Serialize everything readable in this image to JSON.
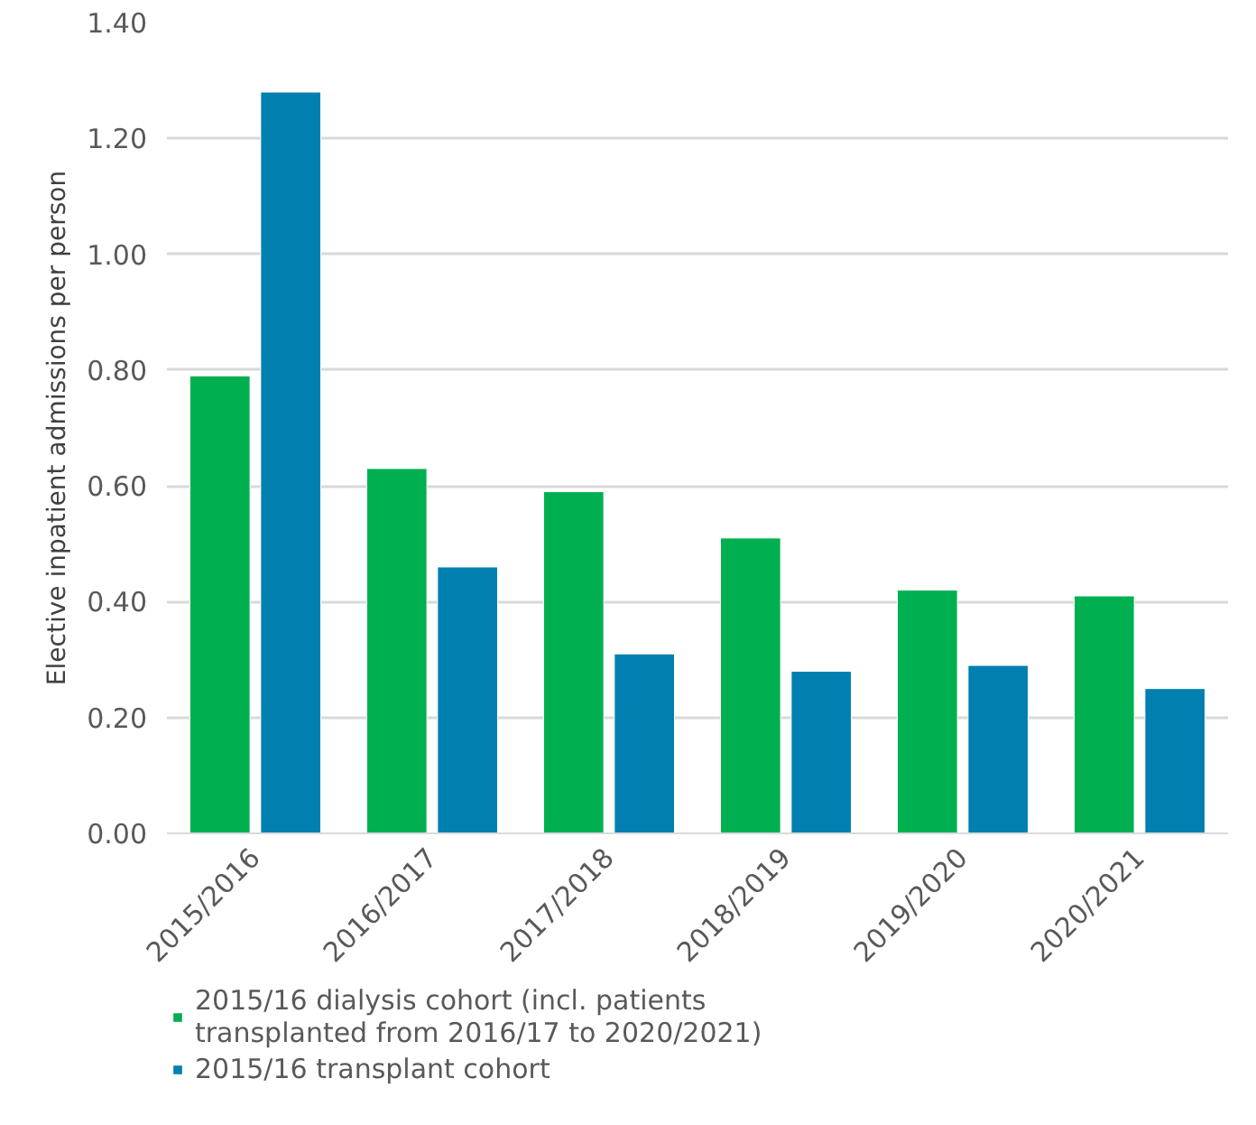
{
  "chart_data": {
    "type": "bar",
    "ylabel": "Elective inpatient admissions per person",
    "categories": [
      "2015/2016",
      "2016/2017",
      "2017/2018",
      "2018/2019",
      "2019/2020",
      "2020/2021"
    ],
    "series": [
      {
        "name": "2015/16 dialysis cohort (incl. patients transplanted from 2016/17 to 2020/2021)",
        "color": "#00b050",
        "values": [
          0.79,
          0.63,
          0.59,
          0.51,
          0.42,
          0.41
        ]
      },
      {
        "name": "2015/16 transplant cohort",
        "color": "#0080b0",
        "values": [
          1.28,
          0.46,
          0.31,
          0.28,
          0.29,
          0.25
        ]
      }
    ],
    "ylim": [
      0,
      1.4
    ],
    "yticks": [
      {
        "value": 0,
        "label": "0.00"
      },
      {
        "value": 0.2,
        "label": "0.20"
      },
      {
        "value": 0.4,
        "label": "0.40"
      },
      {
        "value": 0.6,
        "label": "0.60"
      },
      {
        "value": 0.8,
        "label": "0.80"
      },
      {
        "value": 1.0,
        "label": "1.00"
      },
      {
        "value": 1.2,
        "label": "1.20"
      },
      {
        "value": 1.4,
        "label": "1.40"
      }
    ],
    "grid": "y",
    "legend": "bottom"
  }
}
